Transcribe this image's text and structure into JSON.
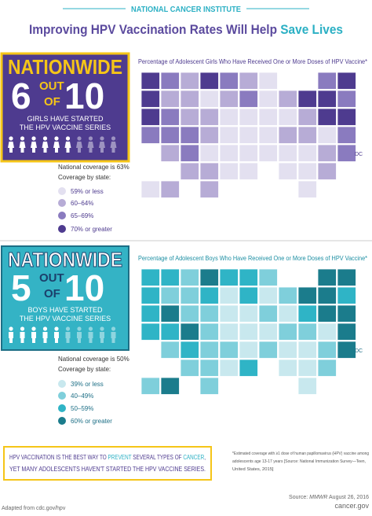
{
  "header": {
    "org": "NATIONAL CANCER INSTITUTE",
    "title": "Improving HPV Vaccination Rates Will Help ",
    "title_highlight": "Save Lives"
  },
  "girls": {
    "nationwide": "NATIONWIDE",
    "number": "6",
    "out": "OUT",
    "of": "OF",
    "total": "10",
    "caption": [
      "GIRLS HAVE STARTED",
      "THE HPV VACCINE SERIES"
    ],
    "coverage": "National coverage is 63%",
    "coverage_by_state": "Coverage by state:",
    "legend": [
      "59% or less",
      "60–64%",
      "65–69%",
      "70% or greater"
    ],
    "map_title": "Percentage of Adolescent Girls Who Have Received One or More Doses of HPV Vaccine*",
    "dc": "DC"
  },
  "boys": {
    "nationwide": "NATIONWIDE",
    "number": "5",
    "out": "OUT",
    "of": "OF",
    "total": "10",
    "caption": [
      "BOYS HAVE STARTED",
      "THE HPV VACCINE SERIES"
    ],
    "coverage": "National coverage is 50%",
    "coverage_by_state": "Coverage by state:",
    "legend": [
      "39% or less",
      "40–49%",
      "50–59%",
      "60% or greater"
    ],
    "map_title": "Percentage of Adolescent Boys Who Have Received One or More Doses of HPV Vaccine*",
    "dc": "DC"
  },
  "footer": {
    "message": {
      "a": "HPV VACCINATION IS THE BEST WAY TO ",
      "b": "PREVENT",
      "c": " SEVERAL TYPES OF ",
      "d": "CANCER",
      "e": ",",
      "line2": "YET MANY ADOLESCENTS HAVEN'T STARTED THE HPV VACCINE SERIES."
    },
    "footnote": [
      "*Estimated coverage with ≥1 dose of human papillomavirus (HPV) vaccine among",
      "adolescents age 13-17 years [Source: National Immunization Survey—Teen,",
      "United States, 2015]"
    ],
    "source_prefix": "Source: ",
    "source_pub": "MMWR",
    "source_date": " August 26, 2016",
    "site": "cancer.gov",
    "adapted": "Adapted from cdc.gov/hpv"
  }
}
